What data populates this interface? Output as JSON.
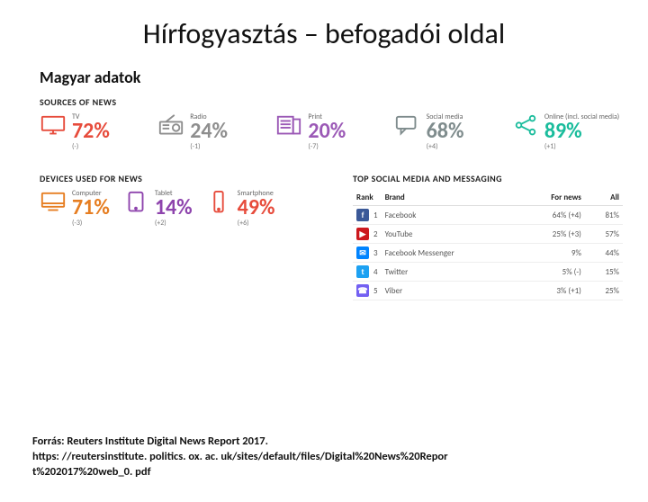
{
  "title": "Hírfogyasztás – befogadói oldal",
  "subtitle": "Magyar adatok",
  "sections": {
    "sources_label": "SOURCES OF NEWS",
    "devices_label": "DEVICES USED FOR NEWS",
    "table_label": "TOP SOCIAL MEDIA AND MESSAGING"
  },
  "sources": [
    {
      "name": "TV",
      "pct": "72%",
      "delta": "(-)",
      "color": "#e74c3c",
      "icon": "tv"
    },
    {
      "name": "Radio",
      "pct": "24%",
      "delta": "(-1)",
      "color": "#8e8e8e",
      "icon": "radio"
    },
    {
      "name": "Print",
      "pct": "20%",
      "delta": "(-7)",
      "color": "#9b59b6",
      "icon": "print"
    },
    {
      "name": "Social media",
      "pct": "68%",
      "delta": "(+4)",
      "color": "#7f8c8d",
      "icon": "chat"
    },
    {
      "name": "Online (incl. social media)",
      "pct": "89%",
      "delta": "(+1)",
      "color": "#1abc9c",
      "icon": "share"
    }
  ],
  "devices": [
    {
      "name": "Computer",
      "pct": "71%",
      "delta": "(-3)",
      "color": "#e67e22",
      "icon": "computer"
    },
    {
      "name": "Tablet",
      "pct": "14%",
      "delta": "(+2)",
      "color": "#8e44ad",
      "icon": "tablet"
    },
    {
      "name": "Smartphone",
      "pct": "49%",
      "delta": "(+6)",
      "color": "#e74c3c",
      "icon": "phone"
    }
  ],
  "table": {
    "columns": [
      "Rank",
      "Brand",
      "For news",
      "All"
    ],
    "rows": [
      {
        "rank": "1",
        "brand": "Facebook",
        "fornews": "64%  (+4)",
        "all": "81%",
        "icon_bg": "#3b5998",
        "icon_txt": "f"
      },
      {
        "rank": "2",
        "brand": "YouTube",
        "fornews": "25%  (+3)",
        "all": "57%",
        "icon_bg": "#cc181e",
        "icon_txt": "▶"
      },
      {
        "rank": "3",
        "brand": "Facebook Messenger",
        "fornews": "9%",
        "all": "44%",
        "icon_bg": "#0084ff",
        "icon_txt": "✉"
      },
      {
        "rank": "4",
        "brand": "Twitter",
        "fornews": "5%  (-)",
        "all": "15%",
        "icon_bg": "#1da1f2",
        "icon_txt": "t"
      },
      {
        "rank": "5",
        "brand": "Viber",
        "fornews": "3%  (+1)",
        "all": "25%",
        "icon_bg": "#7360f2",
        "icon_txt": "☎"
      }
    ]
  },
  "footer": {
    "line1": "Forrás: Reuters Institute Digital News Report  2017.",
    "line2": "https: //reutersinstitute. politics. ox. ac. uk/sites/default/files/Digital%20News%20Repor",
    "line3": "t%202017%20web_0. pdf"
  },
  "styling": {
    "title_fontsize": 32,
    "subtitle_fontsize": 18,
    "pct_fontsize": 24,
    "label_fontsize": 8,
    "section_label_fontsize": 10,
    "table_fontsize": 9,
    "footer_fontsize": 12.5,
    "background": "#ffffff"
  }
}
